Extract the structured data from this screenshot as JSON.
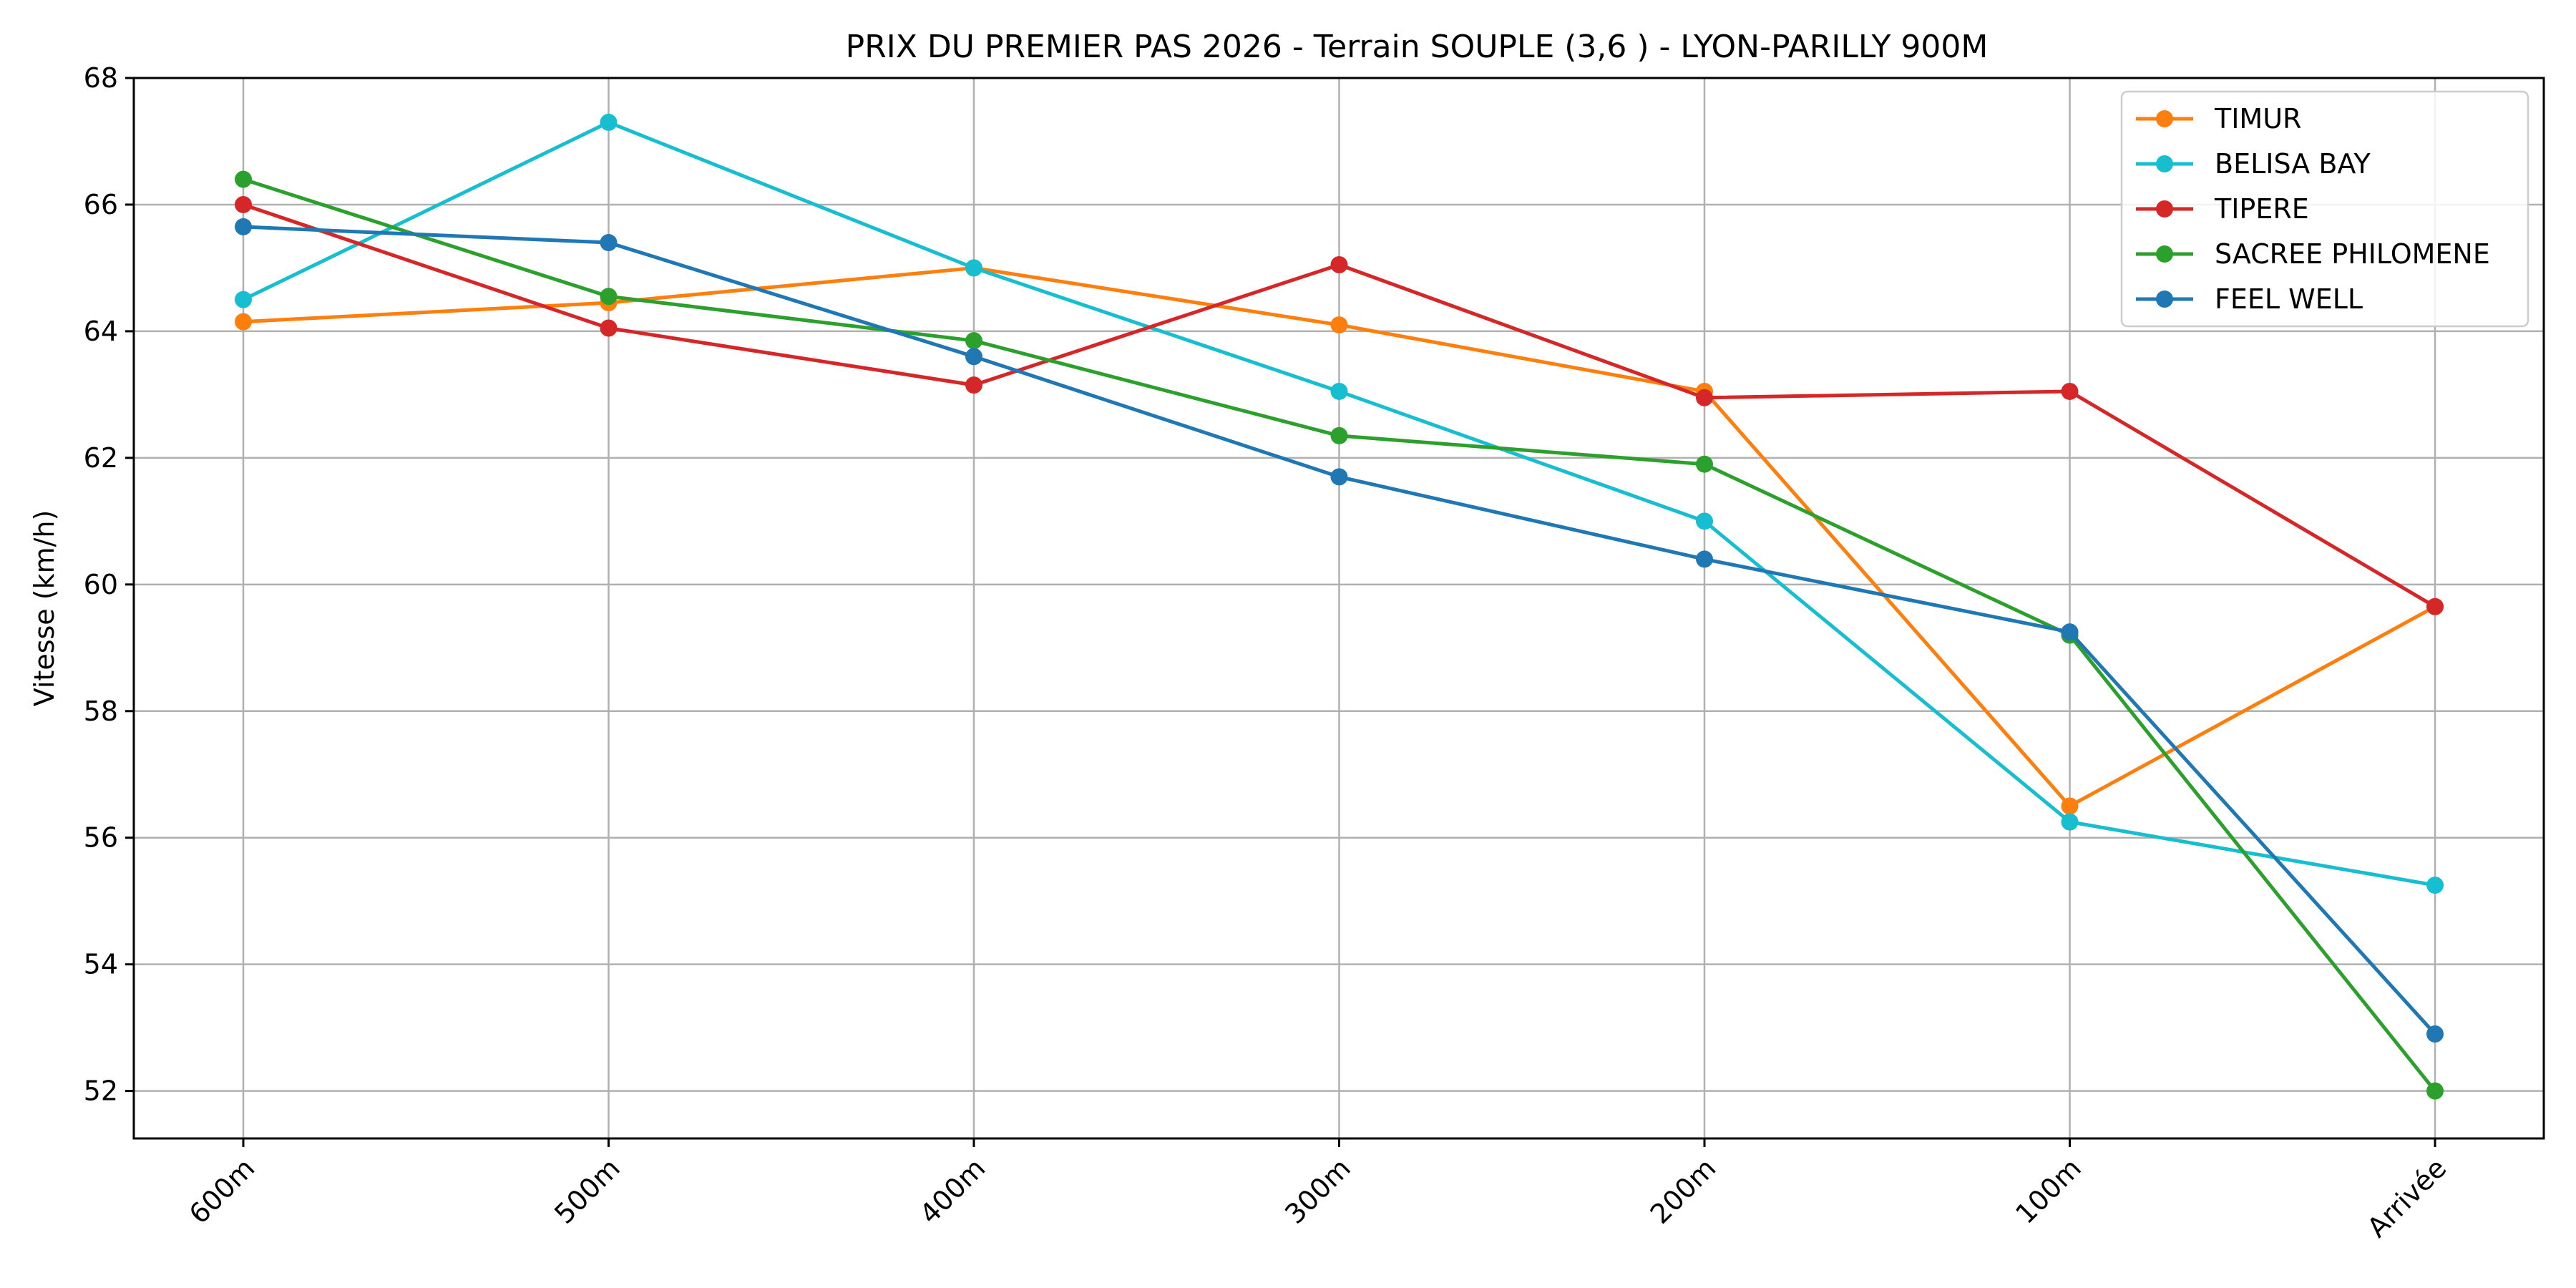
{
  "chart_data": {
    "type": "line",
    "title": "PRIX DU PREMIER PAS 2026 - Terrain SOUPLE (3,6 ) - LYON-PARILLY 900M",
    "xlabel": "",
    "ylabel": "Vitesse (km/h)",
    "categories": [
      "600m",
      "500m",
      "400m",
      "300m",
      "200m",
      "100m",
      "Arrivée"
    ],
    "ylim": [
      51.25,
      68.0
    ],
    "yticks": [
      52,
      54,
      56,
      58,
      60,
      62,
      64,
      66,
      68
    ],
    "grid": true,
    "legend_position": "top-right",
    "series": [
      {
        "name": "TIMUR",
        "color": "#ff7f0e",
        "values": [
          64.15,
          64.45,
          65.0,
          64.1,
          63.05,
          56.5,
          59.65
        ]
      },
      {
        "name": "BELISA BAY",
        "color": "#17becf",
        "values": [
          64.5,
          67.3,
          65.0,
          63.05,
          61.0,
          56.25,
          55.25
        ]
      },
      {
        "name": "TIPERE",
        "color": "#d62728",
        "values": [
          66.0,
          64.05,
          63.15,
          65.05,
          62.95,
          63.05,
          59.65
        ]
      },
      {
        "name": "SACREE PHILOMENE",
        "color": "#2ca02c",
        "values": [
          66.4,
          64.55,
          63.85,
          62.35,
          61.9,
          59.2,
          52.0
        ]
      },
      {
        "name": "FEEL WELL",
        "color": "#1f77b4",
        "values": [
          65.65,
          65.4,
          63.6,
          61.7,
          60.4,
          59.25,
          52.9
        ]
      }
    ]
  }
}
